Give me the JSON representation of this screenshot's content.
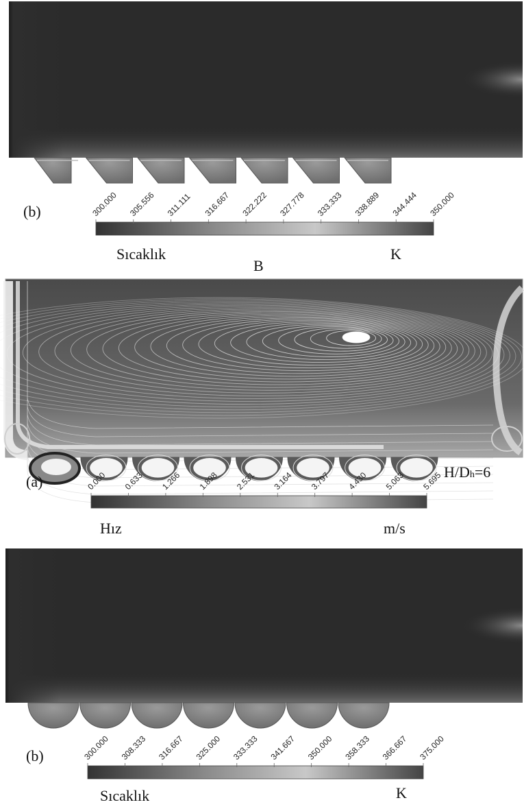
{
  "figure": {
    "panel_top": {
      "label": "(b)",
      "scale_ticks": [
        "300.000",
        "305.556",
        "311.111",
        "316.667",
        "322.222",
        "327.778",
        "333.333",
        "338.889",
        "344.444",
        "350.000"
      ],
      "quantity": "Sıcaklık",
      "unit": "K",
      "cavity_count": 7,
      "cavity_shape": "trapezoidal"
    },
    "caption_mid": "B",
    "panel_mid": {
      "label": "(a)",
      "ratio_label": "H/Dh=6",
      "scale_ticks": [
        "0.000",
        "0.633",
        "1.266",
        "1.898",
        "2.531",
        "3.164",
        "3.797",
        "4.430",
        "5.063",
        "5.695"
      ],
      "quantity": "Hız",
      "unit": "m/s",
      "cavity_count": 7,
      "cavity_shape": "semicircular"
    },
    "panel_bottom": {
      "label": "(b)",
      "scale_ticks": [
        "300.000",
        "308.333",
        "316.667",
        "325.000",
        "333.333",
        "341.667",
        "350.000",
        "358.333",
        "366.667",
        "375.000"
      ],
      "quantity": "Sıcaklık",
      "unit": "K",
      "cavity_count": 7,
      "cavity_shape": "semicircular"
    },
    "colors": {
      "field_dark": "#2a2a2a",
      "field_light": "#b8b8b8",
      "streamline": "#ffffff"
    }
  }
}
